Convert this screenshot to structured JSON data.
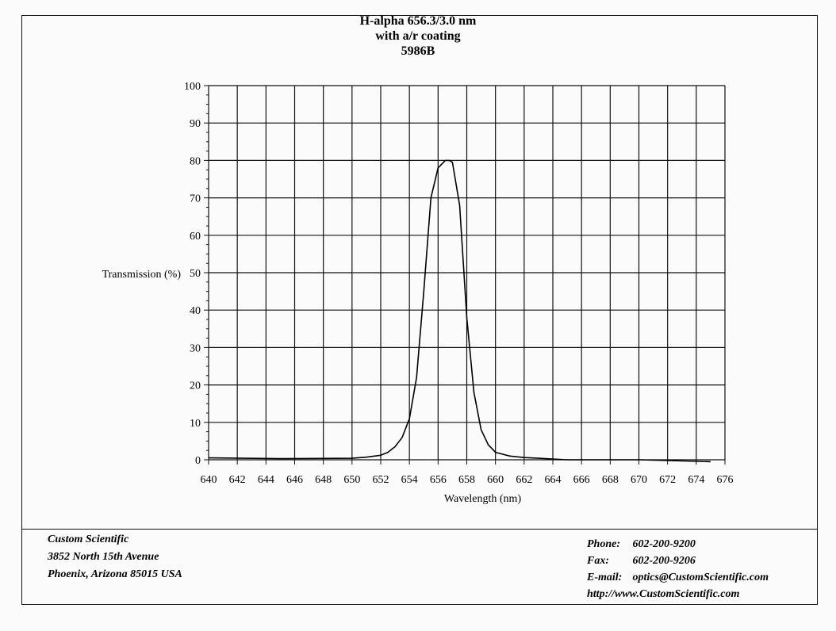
{
  "title": {
    "line1": "H-alpha 656.3/3.0 nm",
    "line2": "with a/r coating",
    "line3": "5986B"
  },
  "chart_data": {
    "type": "line",
    "title": "H-alpha 656.3/3.0 nm with a/r coating 5986B",
    "xlabel": "Wavelength (nm)",
    "ylabel": "Transmission (%)",
    "xlim": [
      640,
      676
    ],
    "ylim": [
      0,
      100
    ],
    "x_ticks": [
      640,
      642,
      644,
      646,
      648,
      650,
      652,
      654,
      656,
      658,
      660,
      662,
      664,
      666,
      668,
      670,
      672,
      674,
      676
    ],
    "y_ticks": [
      0,
      10,
      20,
      30,
      40,
      50,
      60,
      70,
      80,
      90,
      100
    ],
    "grid": true,
    "legend": "none",
    "line_color": "#000000",
    "series": [
      {
        "x": [
          640,
          645,
          650,
          651,
          652,
          652.5,
          653,
          653.5,
          654,
          654.5,
          655,
          655.5,
          656,
          656.5,
          656.8,
          657,
          657.5,
          658,
          658.5,
          659,
          659.5,
          660,
          661,
          662,
          663,
          665,
          670,
          675
        ],
        "y": [
          0.5,
          0.3,
          0.4,
          0.7,
          1.2,
          2,
          3.5,
          6,
          11,
          22,
          45,
          70,
          78,
          80,
          80,
          79.5,
          68,
          38,
          18,
          8,
          4,
          2,
          1,
          0.6,
          0.4,
          0,
          0,
          -0.5
        ]
      }
    ]
  },
  "footer": {
    "company": "Custom Scientific",
    "street": "3852 North 15th Avenue",
    "city": "Phoenix, Arizona 85015 USA",
    "phone_label": "Phone:",
    "phone": "602-200-9200",
    "fax_label": "Fax:",
    "fax": "602-200-9206",
    "email_label": "E-mail:",
    "email": "optics@CustomScientific.com",
    "web": "http://www.CustomScientific.com"
  }
}
